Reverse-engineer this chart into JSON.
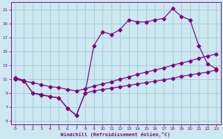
{
  "xlabel": "Windchill (Refroidissement éolien,°C)",
  "bg_color": "#cce8f0",
  "line_color": "#800080",
  "grid_color": "#aaccd8",
  "xlim": [
    -0.5,
    23.5
  ],
  "ylim": [
    4.5,
    22
  ],
  "xticks": [
    0,
    1,
    2,
    3,
    4,
    5,
    6,
    7,
    8,
    9,
    10,
    11,
    12,
    13,
    14,
    15,
    16,
    17,
    18,
    19,
    20,
    21,
    22,
    23
  ],
  "yticks": [
    5,
    7,
    9,
    11,
    13,
    15,
    17,
    19,
    21
  ],
  "line_upper_x": [
    0,
    1,
    2,
    3,
    4,
    5,
    6,
    7,
    8,
    9,
    10,
    11,
    12,
    13,
    14,
    15,
    16,
    17,
    18,
    19,
    20,
    21,
    22,
    23
  ],
  "line_upper_y": [
    11.2,
    10.8,
    9.0,
    8.8,
    8.5,
    8.3,
    6.8,
    5.8,
    9.0,
    15.8,
    17.8,
    17.4,
    18.1,
    19.5,
    19.2,
    19.2,
    19.5,
    19.7,
    21.1,
    20.0,
    19.5,
    15.8,
    13.2,
    12.5
  ],
  "line_diag_x": [
    0,
    1,
    2,
    3,
    4,
    5,
    6,
    7,
    8,
    9,
    10,
    11,
    12,
    13,
    14,
    15,
    16,
    17,
    18,
    19,
    20,
    21,
    22,
    23
  ],
  "line_diag_y": [
    11.0,
    10.7,
    10.5,
    10.2,
    9.9,
    9.8,
    9.5,
    9.3,
    9.6,
    10.0,
    10.3,
    10.6,
    11.0,
    11.3,
    11.7,
    12.0,
    12.3,
    12.6,
    13.0,
    13.3,
    13.6,
    14.0,
    14.3,
    14.6
  ],
  "line_lower_x": [
    0,
    1,
    2,
    3,
    4,
    5,
    6,
    7,
    8,
    9,
    10,
    11,
    12,
    13,
    14,
    15,
    16,
    17,
    18,
    19,
    20,
    21,
    22,
    23
  ],
  "line_lower_y": [
    11.2,
    10.8,
    9.0,
    8.7,
    8.5,
    8.3,
    6.8,
    5.8,
    9.0,
    9.3,
    9.5,
    9.7,
    9.9,
    10.1,
    10.3,
    10.5,
    10.7,
    10.9,
    11.1,
    11.4,
    11.6,
    11.8,
    12.0,
    12.3
  ]
}
